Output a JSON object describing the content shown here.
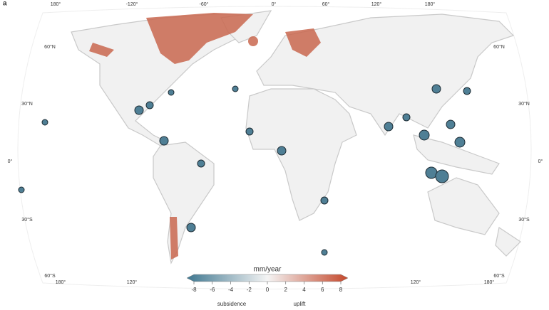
{
  "panel_label": "a",
  "longitudes_top": [
    "180°",
    "-120°",
    "-60°",
    "0°",
    "60°",
    "120°",
    "180°"
  ],
  "longitudes_bottom": [
    "180°",
    "120°",
    "120°",
    "180°"
  ],
  "latitudes_left": [
    "60°N",
    "30°N",
    "0°",
    "30°S",
    "60°S"
  ],
  "latitudes_right": [
    "60°N",
    "30°N",
    "0°",
    "30°S",
    "60°S"
  ],
  "legend": {
    "title": "mm/year",
    "lim": [
      -8,
      8
    ],
    "ticks": [
      -8,
      -6,
      -4,
      -2,
      0,
      2,
      4,
      6,
      8
    ],
    "colors": [
      "#3f7790",
      "#f4f4f4",
      "#c4482c"
    ],
    "low_label": "subsidence",
    "high_label": "uplift"
  }
}
